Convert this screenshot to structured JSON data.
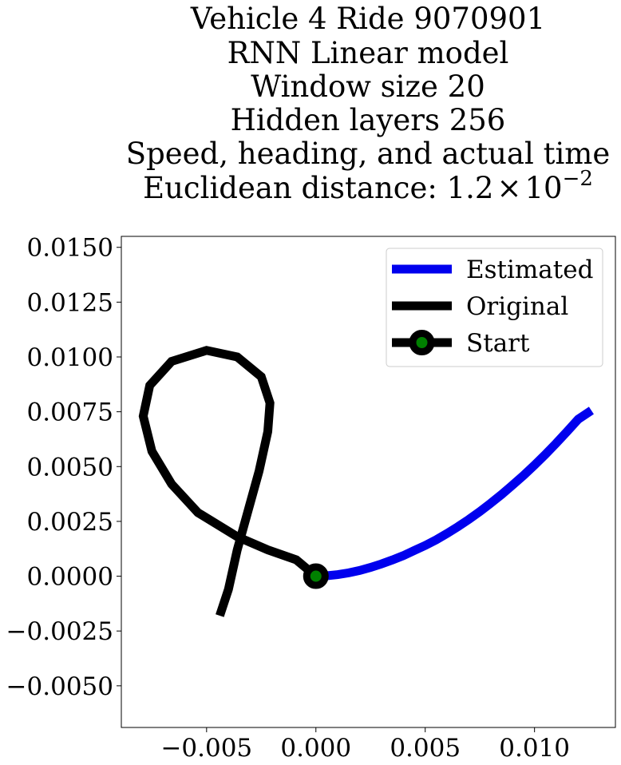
{
  "chart_data": {
    "type": "line",
    "title_lines": [
      "Vehicle 4 Ride 9070901",
      "RNN Linear model",
      "Window size 20",
      "Hidden layers 256",
      "Speed, heading, and actual time"
    ],
    "title_distance_prefix": "Euclidean distance: 1.2",
    "title_distance_times": "×",
    "title_distance_base": "10",
    "title_distance_exp": "−2",
    "xlim": [
      -0.0089,
      0.0137
    ],
    "ylim": [
      -0.0069,
      0.0155
    ],
    "x_ticks": [
      -0.005,
      0.0,
      0.005,
      0.01
    ],
    "x_tick_labels": [
      "−0.005",
      "0.000",
      "0.005",
      "0.010"
    ],
    "y_ticks": [
      0.015,
      0.0125,
      0.01,
      0.0075,
      0.005,
      0.0025,
      0.0,
      -0.0025,
      -0.005
    ],
    "y_tick_labels": [
      "0.0150",
      "0.0125",
      "0.0100",
      "0.0075",
      "0.0050",
      "0.0025",
      "0.0000",
      "−0.0025",
      "−0.0050"
    ],
    "grid": false,
    "legend_position": "top-right",
    "series": [
      {
        "name": "Estimated",
        "color": "#0000ee",
        "x": [
          0.0,
          0.0005,
          0.001,
          0.0015,
          0.002,
          0.0025,
          0.003,
          0.0035,
          0.004,
          0.0045,
          0.005,
          0.0055,
          0.006,
          0.0065,
          0.007,
          0.0075,
          0.008,
          0.0085,
          0.009,
          0.0095,
          0.01,
          0.0105,
          0.011,
          0.0115,
          0.012,
          0.0126
        ],
        "y": [
          0.0,
          2e-05,
          7e-05,
          0.00015,
          0.00026,
          0.0004,
          0.00056,
          0.00074,
          0.00094,
          0.00117,
          0.0014,
          0.00166,
          0.00195,
          0.00226,
          0.00259,
          0.00295,
          0.00333,
          0.00373,
          0.00416,
          0.0046,
          0.00507,
          0.00556,
          0.00607,
          0.00661,
          0.00716,
          0.00756
        ]
      },
      {
        "name": "Original",
        "color": "#000000",
        "x": [
          0.0,
          -0.0009,
          -0.0022,
          -0.0036,
          -0.0054,
          -0.0066,
          -0.0075,
          -0.0079,
          -0.0076,
          -0.0066,
          -0.005,
          -0.0036,
          -0.0025,
          -0.0021,
          -0.0022,
          -0.0026,
          -0.0031,
          -0.0036,
          -0.004,
          -0.0044
        ],
        "y": [
          0.0,
          0.00075,
          0.0012,
          0.0018,
          0.0029,
          0.0042,
          0.0057,
          0.0073,
          0.0087,
          0.0098,
          0.0103,
          0.01,
          0.0091,
          0.0079,
          0.0066,
          0.0048,
          0.003,
          0.0012,
          -0.0006,
          -0.0018
        ]
      }
    ],
    "start": {
      "name": "Start",
      "x": 0.0,
      "y": 0.0,
      "marker_face": "#008000",
      "marker_edge": "#000000"
    }
  }
}
